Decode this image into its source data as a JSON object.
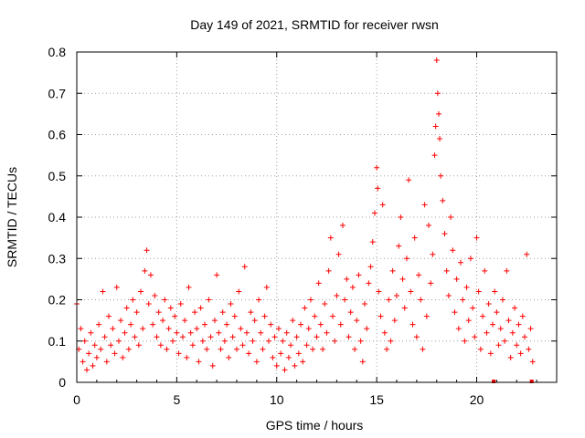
{
  "chart_data": {
    "type": "scatter",
    "title": "Day 149 of 2021, SRMTID for receiver rwsn",
    "xlabel": "GPS time / hours",
    "ylabel": "SRMTID / TECUs",
    "xlim": [
      0,
      24
    ],
    "ylim": [
      0,
      0.8
    ],
    "x_ticks": [
      0,
      5,
      10,
      15,
      20
    ],
    "x_tick_labels": [
      "0",
      "5",
      "10",
      "15",
      "20"
    ],
    "y_ticks": [
      0,
      0.1,
      0.2,
      0.3,
      0.4,
      0.5,
      0.6,
      0.7,
      0.8
    ],
    "y_tick_labels": [
      "0",
      "0.1",
      "0.2",
      "0.3",
      "0.4",
      "0.5",
      "0.6",
      "0.7",
      "0.8"
    ],
    "grid": true,
    "marker": "+",
    "series_color": "#ff0000",
    "series": [
      {
        "name": "SRMTID",
        "points": [
          [
            0.0,
            0.19
          ],
          [
            0.1,
            0.08
          ],
          [
            0.2,
            0.13
          ],
          [
            0.3,
            0.05
          ],
          [
            0.4,
            0.1
          ],
          [
            0.5,
            0.03
          ],
          [
            0.6,
            0.07
          ],
          [
            0.7,
            0.12
          ],
          [
            0.8,
            0.04
          ],
          [
            0.9,
            0.09
          ],
          [
            1.0,
            0.06
          ],
          [
            1.1,
            0.14
          ],
          [
            1.2,
            0.08
          ],
          [
            1.3,
            0.22
          ],
          [
            1.4,
            0.11
          ],
          [
            1.5,
            0.05
          ],
          [
            1.6,
            0.16
          ],
          [
            1.7,
            0.09
          ],
          [
            1.8,
            0.13
          ],
          [
            1.9,
            0.07
          ],
          [
            2.0,
            0.23
          ],
          [
            2.1,
            0.1
          ],
          [
            2.2,
            0.15
          ],
          [
            2.3,
            0.06
          ],
          [
            2.4,
            0.12
          ],
          [
            2.5,
            0.18
          ],
          [
            2.6,
            0.08
          ],
          [
            2.7,
            0.14
          ],
          [
            2.8,
            0.2
          ],
          [
            2.9,
            0.11
          ],
          [
            3.0,
            0.17
          ],
          [
            3.1,
            0.09
          ],
          [
            3.2,
            0.22
          ],
          [
            3.3,
            0.13
          ],
          [
            3.4,
            0.27
          ],
          [
            3.5,
            0.32
          ],
          [
            3.6,
            0.19
          ],
          [
            3.7,
            0.26
          ],
          [
            3.8,
            0.14
          ],
          [
            3.9,
            0.21
          ],
          [
            4.0,
            0.11
          ],
          [
            4.1,
            0.17
          ],
          [
            4.2,
            0.09
          ],
          [
            4.3,
            0.15
          ],
          [
            4.4,
            0.2
          ],
          [
            4.5,
            0.08
          ],
          [
            4.6,
            0.13
          ],
          [
            4.7,
            0.18
          ],
          [
            4.8,
            0.1
          ],
          [
            4.9,
            0.16
          ],
          [
            5.0,
            0.12
          ],
          [
            5.1,
            0.07
          ],
          [
            5.2,
            0.19
          ],
          [
            5.3,
            0.11
          ],
          [
            5.4,
            0.15
          ],
          [
            5.5,
            0.06
          ],
          [
            5.6,
            0.23
          ],
          [
            5.7,
            0.12
          ],
          [
            5.8,
            0.09
          ],
          [
            5.9,
            0.17
          ],
          [
            6.0,
            0.13
          ],
          [
            6.1,
            0.05
          ],
          [
            6.2,
            0.18
          ],
          [
            6.3,
            0.1
          ],
          [
            6.4,
            0.14
          ],
          [
            6.5,
            0.08
          ],
          [
            6.6,
            0.2
          ],
          [
            6.7,
            0.11
          ],
          [
            6.8,
            0.04
          ],
          [
            6.9,
            0.15
          ],
          [
            7.0,
            0.26
          ],
          [
            7.1,
            0.12
          ],
          [
            7.2,
            0.08
          ],
          [
            7.3,
            0.17
          ],
          [
            7.4,
            0.1
          ],
          [
            7.5,
            0.14
          ],
          [
            7.6,
            0.06
          ],
          [
            7.7,
            0.19
          ],
          [
            7.8,
            0.11
          ],
          [
            7.9,
            0.16
          ],
          [
            8.0,
            0.08
          ],
          [
            8.1,
            0.22
          ],
          [
            8.2,
            0.13
          ],
          [
            8.3,
            0.09
          ],
          [
            8.4,
            0.28
          ],
          [
            8.5,
            0.12
          ],
          [
            8.6,
            0.07
          ],
          [
            8.7,
            0.17
          ],
          [
            8.8,
            0.1
          ],
          [
            8.9,
            0.15
          ],
          [
            9.0,
            0.05
          ],
          [
            9.1,
            0.2
          ],
          [
            9.2,
            0.12
          ],
          [
            9.3,
            0.08
          ],
          [
            9.4,
            0.16
          ],
          [
            9.5,
            0.23
          ],
          [
            9.6,
            0.1
          ],
          [
            9.7,
            0.14
          ],
          [
            9.8,
            0.06
          ],
          [
            9.9,
            0.11
          ],
          [
            10.0,
            0.04
          ],
          [
            10.1,
            0.13
          ],
          [
            10.2,
            0.07
          ],
          [
            10.3,
            0.1
          ],
          [
            10.4,
            0.03
          ],
          [
            10.5,
            0.12
          ],
          [
            10.6,
            0.06
          ],
          [
            10.7,
            0.09
          ],
          [
            10.8,
            0.15
          ],
          [
            10.9,
            0.04
          ],
          [
            11.0,
            0.11
          ],
          [
            11.1,
            0.07
          ],
          [
            11.2,
            0.14
          ],
          [
            11.3,
            0.05
          ],
          [
            11.4,
            0.18
          ],
          [
            11.5,
            0.09
          ],
          [
            11.6,
            0.13
          ],
          [
            11.7,
            0.2
          ],
          [
            11.8,
            0.08
          ],
          [
            11.9,
            0.16
          ],
          [
            12.0,
            0.11
          ],
          [
            12.1,
            0.24
          ],
          [
            12.2,
            0.14
          ],
          [
            12.3,
            0.08
          ],
          [
            12.4,
            0.19
          ],
          [
            12.5,
            0.12
          ],
          [
            12.6,
            0.27
          ],
          [
            12.7,
            0.35
          ],
          [
            12.8,
            0.16
          ],
          [
            12.9,
            0.1
          ],
          [
            13.0,
            0.21
          ],
          [
            13.1,
            0.31
          ],
          [
            13.2,
            0.14
          ],
          [
            13.3,
            0.38
          ],
          [
            13.4,
            0.2
          ],
          [
            13.5,
            0.25
          ],
          [
            13.6,
            0.11
          ],
          [
            13.7,
            0.17
          ],
          [
            13.8,
            0.23
          ],
          [
            13.9,
            0.08
          ],
          [
            14.0,
            0.15
          ],
          [
            14.1,
            0.26
          ],
          [
            14.2,
            0.1
          ],
          [
            14.3,
            0.05
          ],
          [
            14.4,
            0.19
          ],
          [
            14.5,
            0.13
          ],
          [
            14.6,
            0.24
          ],
          [
            14.7,
            0.28
          ],
          [
            14.8,
            0.34
          ],
          [
            14.9,
            0.41
          ],
          [
            15.0,
            0.52
          ],
          [
            15.05,
            0.47
          ],
          [
            15.1,
            0.22
          ],
          [
            15.2,
            0.16
          ],
          [
            15.3,
            0.43
          ],
          [
            15.4,
            0.12
          ],
          [
            15.5,
            0.08
          ],
          [
            15.6,
            0.2
          ],
          [
            15.7,
            0.1
          ],
          [
            15.8,
            0.27
          ],
          [
            15.9,
            0.15
          ],
          [
            16.0,
            0.21
          ],
          [
            16.1,
            0.33
          ],
          [
            16.2,
            0.4
          ],
          [
            16.3,
            0.25
          ],
          [
            16.4,
            0.18
          ],
          [
            16.5,
            0.3
          ],
          [
            16.6,
            0.49
          ],
          [
            16.7,
            0.22
          ],
          [
            16.8,
            0.14
          ],
          [
            16.9,
            0.35
          ],
          [
            17.0,
            0.11
          ],
          [
            17.1,
            0.26
          ],
          [
            17.2,
            0.2
          ],
          [
            17.3,
            0.08
          ],
          [
            17.4,
            0.43
          ],
          [
            17.5,
            0.16
          ],
          [
            17.6,
            0.38
          ],
          [
            17.7,
            0.24
          ],
          [
            17.8,
            0.31
          ],
          [
            17.9,
            0.55
          ],
          [
            17.95,
            0.62
          ],
          [
            18.0,
            0.78
          ],
          [
            18.05,
            0.7
          ],
          [
            18.1,
            0.65
          ],
          [
            18.15,
            0.59
          ],
          [
            18.2,
            0.5
          ],
          [
            18.3,
            0.44
          ],
          [
            18.4,
            0.36
          ],
          [
            18.5,
            0.27
          ],
          [
            18.6,
            0.21
          ],
          [
            18.7,
            0.4
          ],
          [
            18.8,
            0.32
          ],
          [
            18.9,
            0.17
          ],
          [
            19.0,
            0.25
          ],
          [
            19.1,
            0.13
          ],
          [
            19.2,
            0.29
          ],
          [
            19.3,
            0.2
          ],
          [
            19.4,
            0.1
          ],
          [
            19.5,
            0.23
          ],
          [
            19.6,
            0.15
          ],
          [
            19.7,
            0.3
          ],
          [
            19.8,
            0.18
          ],
          [
            19.9,
            0.11
          ],
          [
            20.0,
            0.35
          ],
          [
            20.1,
            0.22
          ],
          [
            20.2,
            0.08
          ],
          [
            20.3,
            0.16
          ],
          [
            20.4,
            0.27
          ],
          [
            20.5,
            0.12
          ],
          [
            20.6,
            0.19
          ],
          [
            20.7,
            0.07
          ],
          [
            20.8,
            0.14
          ],
          [
            20.9,
            0.22
          ],
          [
            21.0,
            0.17
          ],
          [
            21.1,
            0.09
          ],
          [
            21.2,
            0.13
          ],
          [
            21.3,
            0.2
          ],
          [
            21.4,
            0.1
          ],
          [
            21.5,
            0.27
          ],
          [
            21.6,
            0.15
          ],
          [
            21.7,
            0.06
          ],
          [
            21.8,
            0.12
          ],
          [
            21.9,
            0.18
          ],
          [
            22.0,
            0.09
          ],
          [
            22.1,
            0.14
          ],
          [
            22.2,
            0.07
          ],
          [
            22.3,
            0.16
          ],
          [
            22.4,
            0.11
          ],
          [
            22.5,
            0.31
          ],
          [
            22.6,
            0.08
          ],
          [
            22.7,
            0.13
          ],
          [
            22.8,
            0.05
          ]
        ]
      }
    ],
    "markers_at_zero": [
      20.85,
      22.75
    ]
  }
}
